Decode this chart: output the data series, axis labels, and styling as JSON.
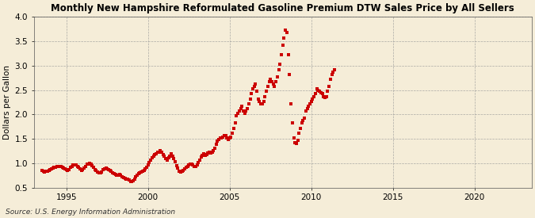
{
  "title": "Monthly New Hampshire Reformulated Gasoline Premium DTW Sales Price by All Sellers",
  "ylabel": "Dollars per Gallon",
  "source": "Source: U.S. Energy Information Administration",
  "background_color": "#F5EDD8",
  "dot_color": "#CC0000",
  "xlim": [
    1993.0,
    2023.5
  ],
  "ylim": [
    0.5,
    4.0
  ],
  "yticks": [
    0.5,
    1.0,
    1.5,
    2.0,
    2.5,
    3.0,
    3.5,
    4.0
  ],
  "xticks": [
    1995,
    2000,
    2005,
    2010,
    2015,
    2020
  ],
  "data": [
    [
      1993.5,
      0.85
    ],
    [
      1993.58,
      0.83
    ],
    [
      1993.67,
      0.82
    ],
    [
      1993.75,
      0.83
    ],
    [
      1993.83,
      0.84
    ],
    [
      1993.92,
      0.86
    ],
    [
      1994.0,
      0.87
    ],
    [
      1994.08,
      0.89
    ],
    [
      1994.17,
      0.9
    ],
    [
      1994.25,
      0.92
    ],
    [
      1994.33,
      0.91
    ],
    [
      1994.42,
      0.93
    ],
    [
      1994.5,
      0.93
    ],
    [
      1994.58,
      0.94
    ],
    [
      1994.67,
      0.93
    ],
    [
      1994.75,
      0.92
    ],
    [
      1994.83,
      0.9
    ],
    [
      1994.92,
      0.88
    ],
    [
      1995.0,
      0.87
    ],
    [
      1995.08,
      0.86
    ],
    [
      1995.17,
      0.87
    ],
    [
      1995.25,
      0.91
    ],
    [
      1995.33,
      0.93
    ],
    [
      1995.42,
      0.96
    ],
    [
      1995.5,
      0.97
    ],
    [
      1995.58,
      0.96
    ],
    [
      1995.67,
      0.94
    ],
    [
      1995.75,
      0.91
    ],
    [
      1995.83,
      0.88
    ],
    [
      1995.92,
      0.86
    ],
    [
      1996.0,
      0.87
    ],
    [
      1996.08,
      0.9
    ],
    [
      1996.17,
      0.94
    ],
    [
      1996.25,
      0.98
    ],
    [
      1996.33,
      0.99
    ],
    [
      1996.42,
      1.0
    ],
    [
      1996.5,
      0.98
    ],
    [
      1996.58,
      0.95
    ],
    [
      1996.67,
      0.91
    ],
    [
      1996.75,
      0.87
    ],
    [
      1996.83,
      0.85
    ],
    [
      1996.92,
      0.82
    ],
    [
      1997.0,
      0.8
    ],
    [
      1997.08,
      0.8
    ],
    [
      1997.17,
      0.82
    ],
    [
      1997.25,
      0.87
    ],
    [
      1997.33,
      0.88
    ],
    [
      1997.42,
      0.9
    ],
    [
      1997.5,
      0.88
    ],
    [
      1997.58,
      0.87
    ],
    [
      1997.67,
      0.85
    ],
    [
      1997.75,
      0.83
    ],
    [
      1997.83,
      0.8
    ],
    [
      1997.92,
      0.78
    ],
    [
      1998.0,
      0.77
    ],
    [
      1998.08,
      0.75
    ],
    [
      1998.17,
      0.75
    ],
    [
      1998.25,
      0.77
    ],
    [
      1998.33,
      0.75
    ],
    [
      1998.42,
      0.73
    ],
    [
      1998.5,
      0.71
    ],
    [
      1998.58,
      0.69
    ],
    [
      1998.67,
      0.68
    ],
    [
      1998.75,
      0.67
    ],
    [
      1998.83,
      0.65
    ],
    [
      1998.92,
      0.63
    ],
    [
      1999.0,
      0.62
    ],
    [
      1999.08,
      0.64
    ],
    [
      1999.17,
      0.68
    ],
    [
      1999.25,
      0.72
    ],
    [
      1999.33,
      0.75
    ],
    [
      1999.42,
      0.78
    ],
    [
      1999.5,
      0.8
    ],
    [
      1999.58,
      0.82
    ],
    [
      1999.67,
      0.83
    ],
    [
      1999.75,
      0.85
    ],
    [
      1999.83,
      0.88
    ],
    [
      1999.92,
      0.92
    ],
    [
      2000.0,
      0.97
    ],
    [
      2000.08,
      1.02
    ],
    [
      2000.17,
      1.07
    ],
    [
      2000.25,
      1.12
    ],
    [
      2000.33,
      1.14
    ],
    [
      2000.42,
      1.17
    ],
    [
      2000.5,
      1.2
    ],
    [
      2000.58,
      1.22
    ],
    [
      2000.67,
      1.23
    ],
    [
      2000.75,
      1.25
    ],
    [
      2000.83,
      1.22
    ],
    [
      2000.92,
      1.17
    ],
    [
      2001.0,
      1.14
    ],
    [
      2001.08,
      1.1
    ],
    [
      2001.17,
      1.07
    ],
    [
      2001.25,
      1.12
    ],
    [
      2001.33,
      1.15
    ],
    [
      2001.42,
      1.2
    ],
    [
      2001.5,
      1.14
    ],
    [
      2001.58,
      1.09
    ],
    [
      2001.67,
      1.03
    ],
    [
      2001.75,
      0.95
    ],
    [
      2001.83,
      0.9
    ],
    [
      2001.92,
      0.83
    ],
    [
      2002.0,
      0.82
    ],
    [
      2002.08,
      0.83
    ],
    [
      2002.17,
      0.86
    ],
    [
      2002.25,
      0.89
    ],
    [
      2002.33,
      0.91
    ],
    [
      2002.42,
      0.93
    ],
    [
      2002.5,
      0.96
    ],
    [
      2002.58,
      0.99
    ],
    [
      2002.67,
      0.98
    ],
    [
      2002.75,
      0.96
    ],
    [
      2002.83,
      0.94
    ],
    [
      2002.92,
      0.94
    ],
    [
      2003.0,
      0.96
    ],
    [
      2003.08,
      1.02
    ],
    [
      2003.17,
      1.07
    ],
    [
      2003.25,
      1.13
    ],
    [
      2003.33,
      1.16
    ],
    [
      2003.42,
      1.19
    ],
    [
      2003.5,
      1.16
    ],
    [
      2003.58,
      1.18
    ],
    [
      2003.67,
      1.21
    ],
    [
      2003.75,
      1.23
    ],
    [
      2003.83,
      1.21
    ],
    [
      2003.92,
      1.23
    ],
    [
      2004.0,
      1.26
    ],
    [
      2004.08,
      1.31
    ],
    [
      2004.17,
      1.39
    ],
    [
      2004.25,
      1.46
    ],
    [
      2004.33,
      1.49
    ],
    [
      2004.42,
      1.51
    ],
    [
      2004.5,
      1.51
    ],
    [
      2004.58,
      1.53
    ],
    [
      2004.67,
      1.56
    ],
    [
      2004.75,
      1.56
    ],
    [
      2004.83,
      1.51
    ],
    [
      2004.92,
      1.49
    ],
    [
      2005.0,
      1.51
    ],
    [
      2005.08,
      1.54
    ],
    [
      2005.17,
      1.62
    ],
    [
      2005.25,
      1.72
    ],
    [
      2005.33,
      1.82
    ],
    [
      2005.42,
      1.97
    ],
    [
      2005.5,
      2.02
    ],
    [
      2005.58,
      2.07
    ],
    [
      2005.67,
      2.12
    ],
    [
      2005.75,
      2.17
    ],
    [
      2005.83,
      2.07
    ],
    [
      2005.92,
      2.02
    ],
    [
      2006.0,
      2.07
    ],
    [
      2006.08,
      2.12
    ],
    [
      2006.17,
      2.22
    ],
    [
      2006.25,
      2.32
    ],
    [
      2006.33,
      2.42
    ],
    [
      2006.42,
      2.52
    ],
    [
      2006.5,
      2.57
    ],
    [
      2006.58,
      2.62
    ],
    [
      2006.67,
      2.47
    ],
    [
      2006.75,
      2.32
    ],
    [
      2006.83,
      2.27
    ],
    [
      2006.92,
      2.22
    ],
    [
      2007.0,
      2.22
    ],
    [
      2007.08,
      2.27
    ],
    [
      2007.17,
      2.37
    ],
    [
      2007.25,
      2.47
    ],
    [
      2007.33,
      2.57
    ],
    [
      2007.42,
      2.67
    ],
    [
      2007.5,
      2.72
    ],
    [
      2007.58,
      2.67
    ],
    [
      2007.67,
      2.62
    ],
    [
      2007.75,
      2.57
    ],
    [
      2007.83,
      2.67
    ],
    [
      2007.92,
      2.77
    ],
    [
      2008.0,
      2.92
    ],
    [
      2008.08,
      3.02
    ],
    [
      2008.17,
      3.22
    ],
    [
      2008.25,
      3.42
    ],
    [
      2008.33,
      3.57
    ],
    [
      2008.42,
      3.72
    ],
    [
      2008.5,
      3.67
    ],
    [
      2008.58,
      3.22
    ],
    [
      2008.67,
      2.82
    ],
    [
      2008.75,
      2.22
    ],
    [
      2008.83,
      1.82
    ],
    [
      2008.92,
      1.52
    ],
    [
      2009.0,
      1.42
    ],
    [
      2009.08,
      1.4
    ],
    [
      2009.17,
      1.47
    ],
    [
      2009.25,
      1.62
    ],
    [
      2009.33,
      1.72
    ],
    [
      2009.42,
      1.82
    ],
    [
      2009.5,
      1.87
    ],
    [
      2009.58,
      1.92
    ],
    [
      2009.67,
      2.07
    ],
    [
      2009.75,
      2.12
    ],
    [
      2009.83,
      2.17
    ],
    [
      2009.92,
      2.22
    ],
    [
      2010.0,
      2.27
    ],
    [
      2010.08,
      2.32
    ],
    [
      2010.17,
      2.37
    ],
    [
      2010.25,
      2.42
    ],
    [
      2010.33,
      2.52
    ],
    [
      2010.42,
      2.5
    ],
    [
      2010.5,
      2.47
    ],
    [
      2010.58,
      2.45
    ],
    [
      2010.67,
      2.42
    ],
    [
      2010.75,
      2.37
    ],
    [
      2010.83,
      2.35
    ],
    [
      2010.92,
      2.37
    ],
    [
      2011.0,
      2.47
    ],
    [
      2011.08,
      2.57
    ],
    [
      2011.17,
      2.72
    ],
    [
      2011.25,
      2.82
    ],
    [
      2011.33,
      2.87
    ],
    [
      2011.42,
      2.92
    ]
  ]
}
